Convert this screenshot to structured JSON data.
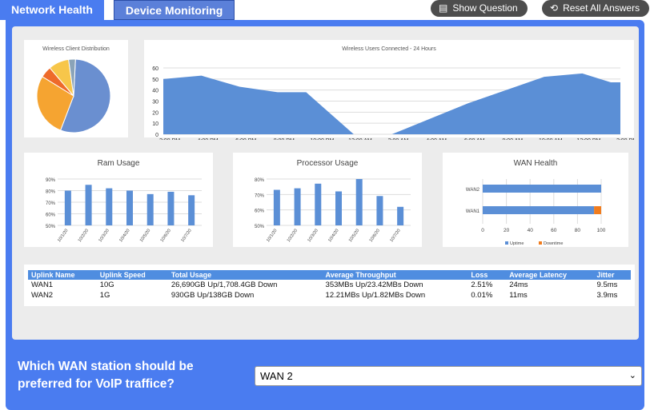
{
  "tabs": [
    {
      "label": "Network Health",
      "active": true
    },
    {
      "label": "Device Monitoring",
      "active": false
    }
  ],
  "buttons": {
    "show_question": "Show Question",
    "show_question_icon": "list-icon",
    "reset": "Reset All Answers",
    "reset_icon": "reset-icon"
  },
  "colors": {
    "panel": "#4a7cf0",
    "series": "#5b8fd6",
    "downtime": "#f07c1e",
    "table_header": "#4f8de0"
  },
  "chart_data": [
    {
      "type": "pie",
      "title": "Wireless Client Distribution",
      "values": [
        55,
        28,
        5,
        9,
        3
      ],
      "colors": [
        "#6a8fd0",
        "#f5a431",
        "#ee6a2a",
        "#f7c64a",
        "#8aa3b8"
      ]
    },
    {
      "type": "area",
      "title": "Wireless Users Connected - 24 Hours",
      "ylim": [
        0,
        60
      ],
      "yticks": [
        0,
        10,
        20,
        30,
        40,
        50,
        60
      ],
      "xticks": [
        "2:00 PM",
        "4:00 PM",
        "6:00 PM",
        "8:00 PM",
        "10:00 PM",
        "12:00 AM",
        "2:00 AM",
        "4:00 AM",
        "6:00 AM",
        "8:00 AM",
        "10:00 AM",
        "12:00 PM",
        "2:00 PM"
      ],
      "points": [
        [
          "2:00 PM",
          50
        ],
        [
          "4:00 PM",
          53
        ],
        [
          "6:00 PM",
          43
        ],
        [
          "8:00 PM",
          38
        ],
        [
          "9:30 PM",
          38
        ],
        [
          "12:00 AM",
          0
        ],
        [
          "2:00 AM",
          0
        ],
        [
          "6:00 AM",
          28
        ],
        [
          "10:00 AM",
          52
        ],
        [
          "12:00 PM",
          55
        ],
        [
          "1:30 PM",
          47
        ],
        [
          "2:00 PM",
          47
        ]
      ]
    },
    {
      "type": "bar",
      "title": "Ram Usage",
      "categories": [
        "10/1/20",
        "10/2/20",
        "10/3/20",
        "10/4/20",
        "10/5/20",
        "10/6/20",
        "10/7/20"
      ],
      "values": [
        80,
        85,
        82,
        80,
        77,
        79,
        76
      ],
      "ylim": [
        50,
        90
      ],
      "yticks": [
        "50%",
        "60%",
        "70%",
        "80%",
        "90%"
      ]
    },
    {
      "type": "bar",
      "title": "Processor Usage",
      "categories": [
        "10/1/20",
        "10/2/20",
        "10/3/20",
        "10/4/20",
        "10/5/20",
        "10/6/20",
        "10/7/20"
      ],
      "values": [
        73,
        74,
        77,
        72,
        80,
        69,
        62
      ],
      "ylim": [
        50,
        80
      ],
      "yticks": [
        "50%",
        "60%",
        "70%",
        "80%"
      ]
    },
    {
      "type": "stacked-bar-horizontal",
      "title": "WAN Health",
      "categories": [
        "WAN2",
        "WAN1"
      ],
      "series": [
        {
          "name": "Uptime",
          "values": [
            100,
            94
          ]
        },
        {
          "name": "Downtime",
          "values": [
            0,
            6
          ]
        }
      ],
      "xlim": [
        0,
        100
      ],
      "xticks": [
        "0",
        "20",
        "40",
        "60",
        "80",
        "100"
      ],
      "legend": "bottom"
    }
  ],
  "table": {
    "headers": [
      "Uplink Name",
      "Uplink Speed",
      "Total Usage",
      "Average Throughput",
      "Loss",
      "Average Latency",
      "Jitter"
    ],
    "rows": [
      [
        "WAN1",
        "10G",
        "26,690GB Up/1,708.4GB Down",
        "353MBs Up/23.42MBs Down",
        "2.51%",
        "24ms",
        "9.5ms"
      ],
      [
        "WAN2",
        "1G",
        "930GB Up/138GB Down",
        "12.21MBs Up/1.82MBs Down",
        "0.01%",
        "11ms",
        "3.9ms"
      ]
    ]
  },
  "question": {
    "text": "Which WAN station should be preferred for VoIP traffice?",
    "selected": "WAN 2"
  }
}
